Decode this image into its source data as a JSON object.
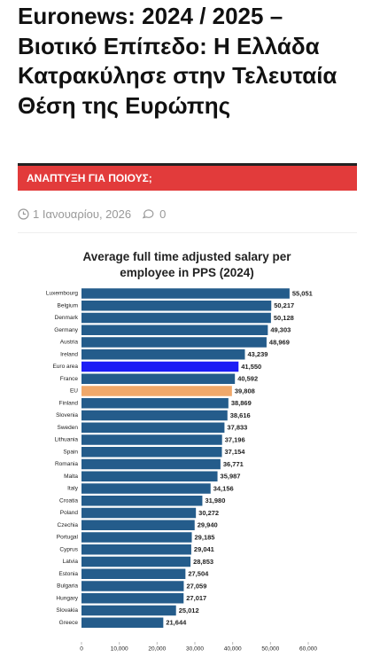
{
  "header": {
    "title": "Euronews: 2024 / 2025 – Βιοτικό Επίπεδο: Η Ελλάδα Κατρακύλησε στην Τελευταία Θέση της Ευρώπης",
    "category": "ΑΝΑΠΤΥΞΗ ΓΙΑ ΠΟΙΟΥΣ;",
    "date": "1 Ιανουαρίου, 2026",
    "comments": "0"
  },
  "chart_data": {
    "type": "bar",
    "orientation": "horizontal",
    "title": "Average full time adjusted salary per employee in PPS (2024)",
    "categories": [
      "Luxembourg",
      "Belgium",
      "Denmark",
      "Germany",
      "Austria",
      "Ireland",
      "Euro area",
      "France",
      "EU",
      "Finland",
      "Slovenia",
      "Sweden",
      "Lithuania",
      "Spain",
      "Romania",
      "Malta",
      "Italy",
      "Croatia",
      "Poland",
      "Czechia",
      "Portugal",
      "Cyprus",
      "Latvia",
      "Estonia",
      "Bulgaria",
      "Hungary",
      "Slovakia",
      "Greece"
    ],
    "values": [
      55051,
      50217,
      50128,
      49303,
      48969,
      43239,
      41550,
      40592,
      39808,
      38869,
      38616,
      37833,
      37196,
      37154,
      36771,
      35987,
      34156,
      31980,
      30272,
      29940,
      29185,
      29041,
      28853,
      27504,
      27059,
      27017,
      25012,
      21644
    ],
    "value_labels": [
      "55,051",
      "50,217",
      "50,128",
      "49,303",
      "48,969",
      "43,239",
      "41,550",
      "40,592",
      "39,808",
      "38,869",
      "38,616",
      "37,833",
      "37,196",
      "37,154",
      "36,771",
      "35,987",
      "34,156",
      "31,980",
      "30,272",
      "29,940",
      "29,185",
      "29,041",
      "28,853",
      "27,504",
      "27,059",
      "27,017",
      "25,012",
      "21,644"
    ],
    "colors": [
      "#245c8b",
      "#245c8b",
      "#245c8b",
      "#245c8b",
      "#245c8b",
      "#245c8b",
      "#1c1cf5",
      "#245c8b",
      "#f0a86a",
      "#245c8b",
      "#245c8b",
      "#245c8b",
      "#245c8b",
      "#245c8b",
      "#245c8b",
      "#245c8b",
      "#245c8b",
      "#245c8b",
      "#245c8b",
      "#245c8b",
      "#245c8b",
      "#245c8b",
      "#245c8b",
      "#245c8b",
      "#245c8b",
      "#245c8b",
      "#245c8b",
      "#245c8b"
    ],
    "xlim": [
      0,
      60000
    ],
    "xticks": [
      0,
      {
        "value": 10000,
        "label": "10,000"
      },
      {
        "value": 20000,
        "label": "20,000"
      },
      {
        "value": 30000,
        "label": "30,000"
      },
      {
        "value": 40000,
        "label": "40,000"
      },
      {
        "value": 50000,
        "label": "50,000"
      },
      {
        "value": 60000,
        "label": "60,000"
      }
    ]
  }
}
